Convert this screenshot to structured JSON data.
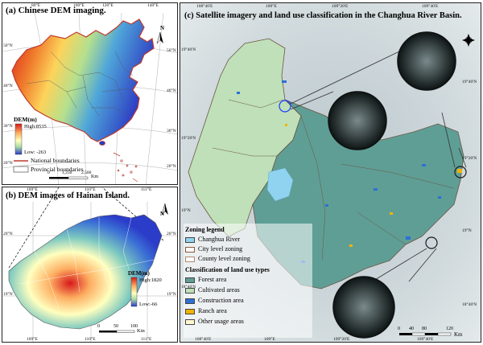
{
  "panel_a": {
    "title": "(a) Chinese DEM imaging.",
    "dem_legend_title": "DEM(m)",
    "dem_high": "High:8535",
    "dem_low": "Low: -263",
    "boundary_national": "National boundaries",
    "boundary_provincial": "Provincial boundaries",
    "scale_0": "0",
    "scale_1": "1,250",
    "scale_2": "2,500",
    "scale_unit": "Km",
    "north": "N",
    "top_ticks": [
      "80°E",
      "100°E",
      "120°E",
      "140°E"
    ],
    "left_ticks": [
      "50°N",
      "40°N",
      "30°N",
      "20°N"
    ],
    "right_ticks": [
      "50°N",
      "40°N",
      "30°N",
      "20°N"
    ],
    "colors": {
      "high": "#d7191c",
      "mid": "#fdae61",
      "mid2": "#abdda4",
      "low": "#2b3cc8",
      "national_line": "#c0392b"
    }
  },
  "panel_b": {
    "title": "(b) DEM images of Hainan Island.",
    "dem_legend_title": "DEM(m)",
    "dem_high": "High:1820",
    "dem_low": "Low:-66",
    "scale_0": "0",
    "scale_1": "50",
    "scale_2": "100",
    "scale_unit": "Km",
    "north": "N",
    "top_ticks": [
      "109°E",
      "110°E",
      "111°E"
    ],
    "bottom_ticks": [
      "109°E",
      "110°E",
      "111°E"
    ],
    "left_ticks": [
      "20°N",
      "19°N"
    ],
    "right_ticks": [
      "20°N",
      "19°N"
    ]
  },
  "panel_c": {
    "title": "(c) Satellite imagery and land use classification in the Changhua River Basin.",
    "zoning_legend_title": "Zoning legend",
    "zoning_items": [
      {
        "label": "Changhua River",
        "color": "#8fd3f0"
      },
      {
        "label": "City level zoning",
        "color": "#ffffff"
      },
      {
        "label": "County level zoning",
        "color": "#ffffff"
      }
    ],
    "landuse_title": "Classification of land use types",
    "landuse_items": [
      {
        "label": "Forest area",
        "color": "#5f9e95"
      },
      {
        "label": "Cultivated areas",
        "color": "#bfe0b8"
      },
      {
        "label": "Construction area",
        "color": "#2f6fd6"
      },
      {
        "label": "Ranch area",
        "color": "#f0b400"
      },
      {
        "label": "Other usage areas",
        "color": "#fff8d0"
      }
    ],
    "scale_0": "0",
    "scale_1": "40",
    "scale_2": "80",
    "scale_3": "120",
    "scale_unit": "Km",
    "top_ticks": [
      "108°40'E",
      "109°E",
      "109°20'E",
      "109°40'E"
    ],
    "bottom_ticks": [
      "108°40'E",
      "109°E",
      "109°20'E",
      "109°40'E"
    ],
    "left_ticks": [
      "19°40'N",
      "19°20'N",
      "19°N",
      "18°40'N"
    ],
    "right_ticks": [
      "19°40'N",
      "19°20'N",
      "19°N",
      "18°40'N"
    ]
  }
}
